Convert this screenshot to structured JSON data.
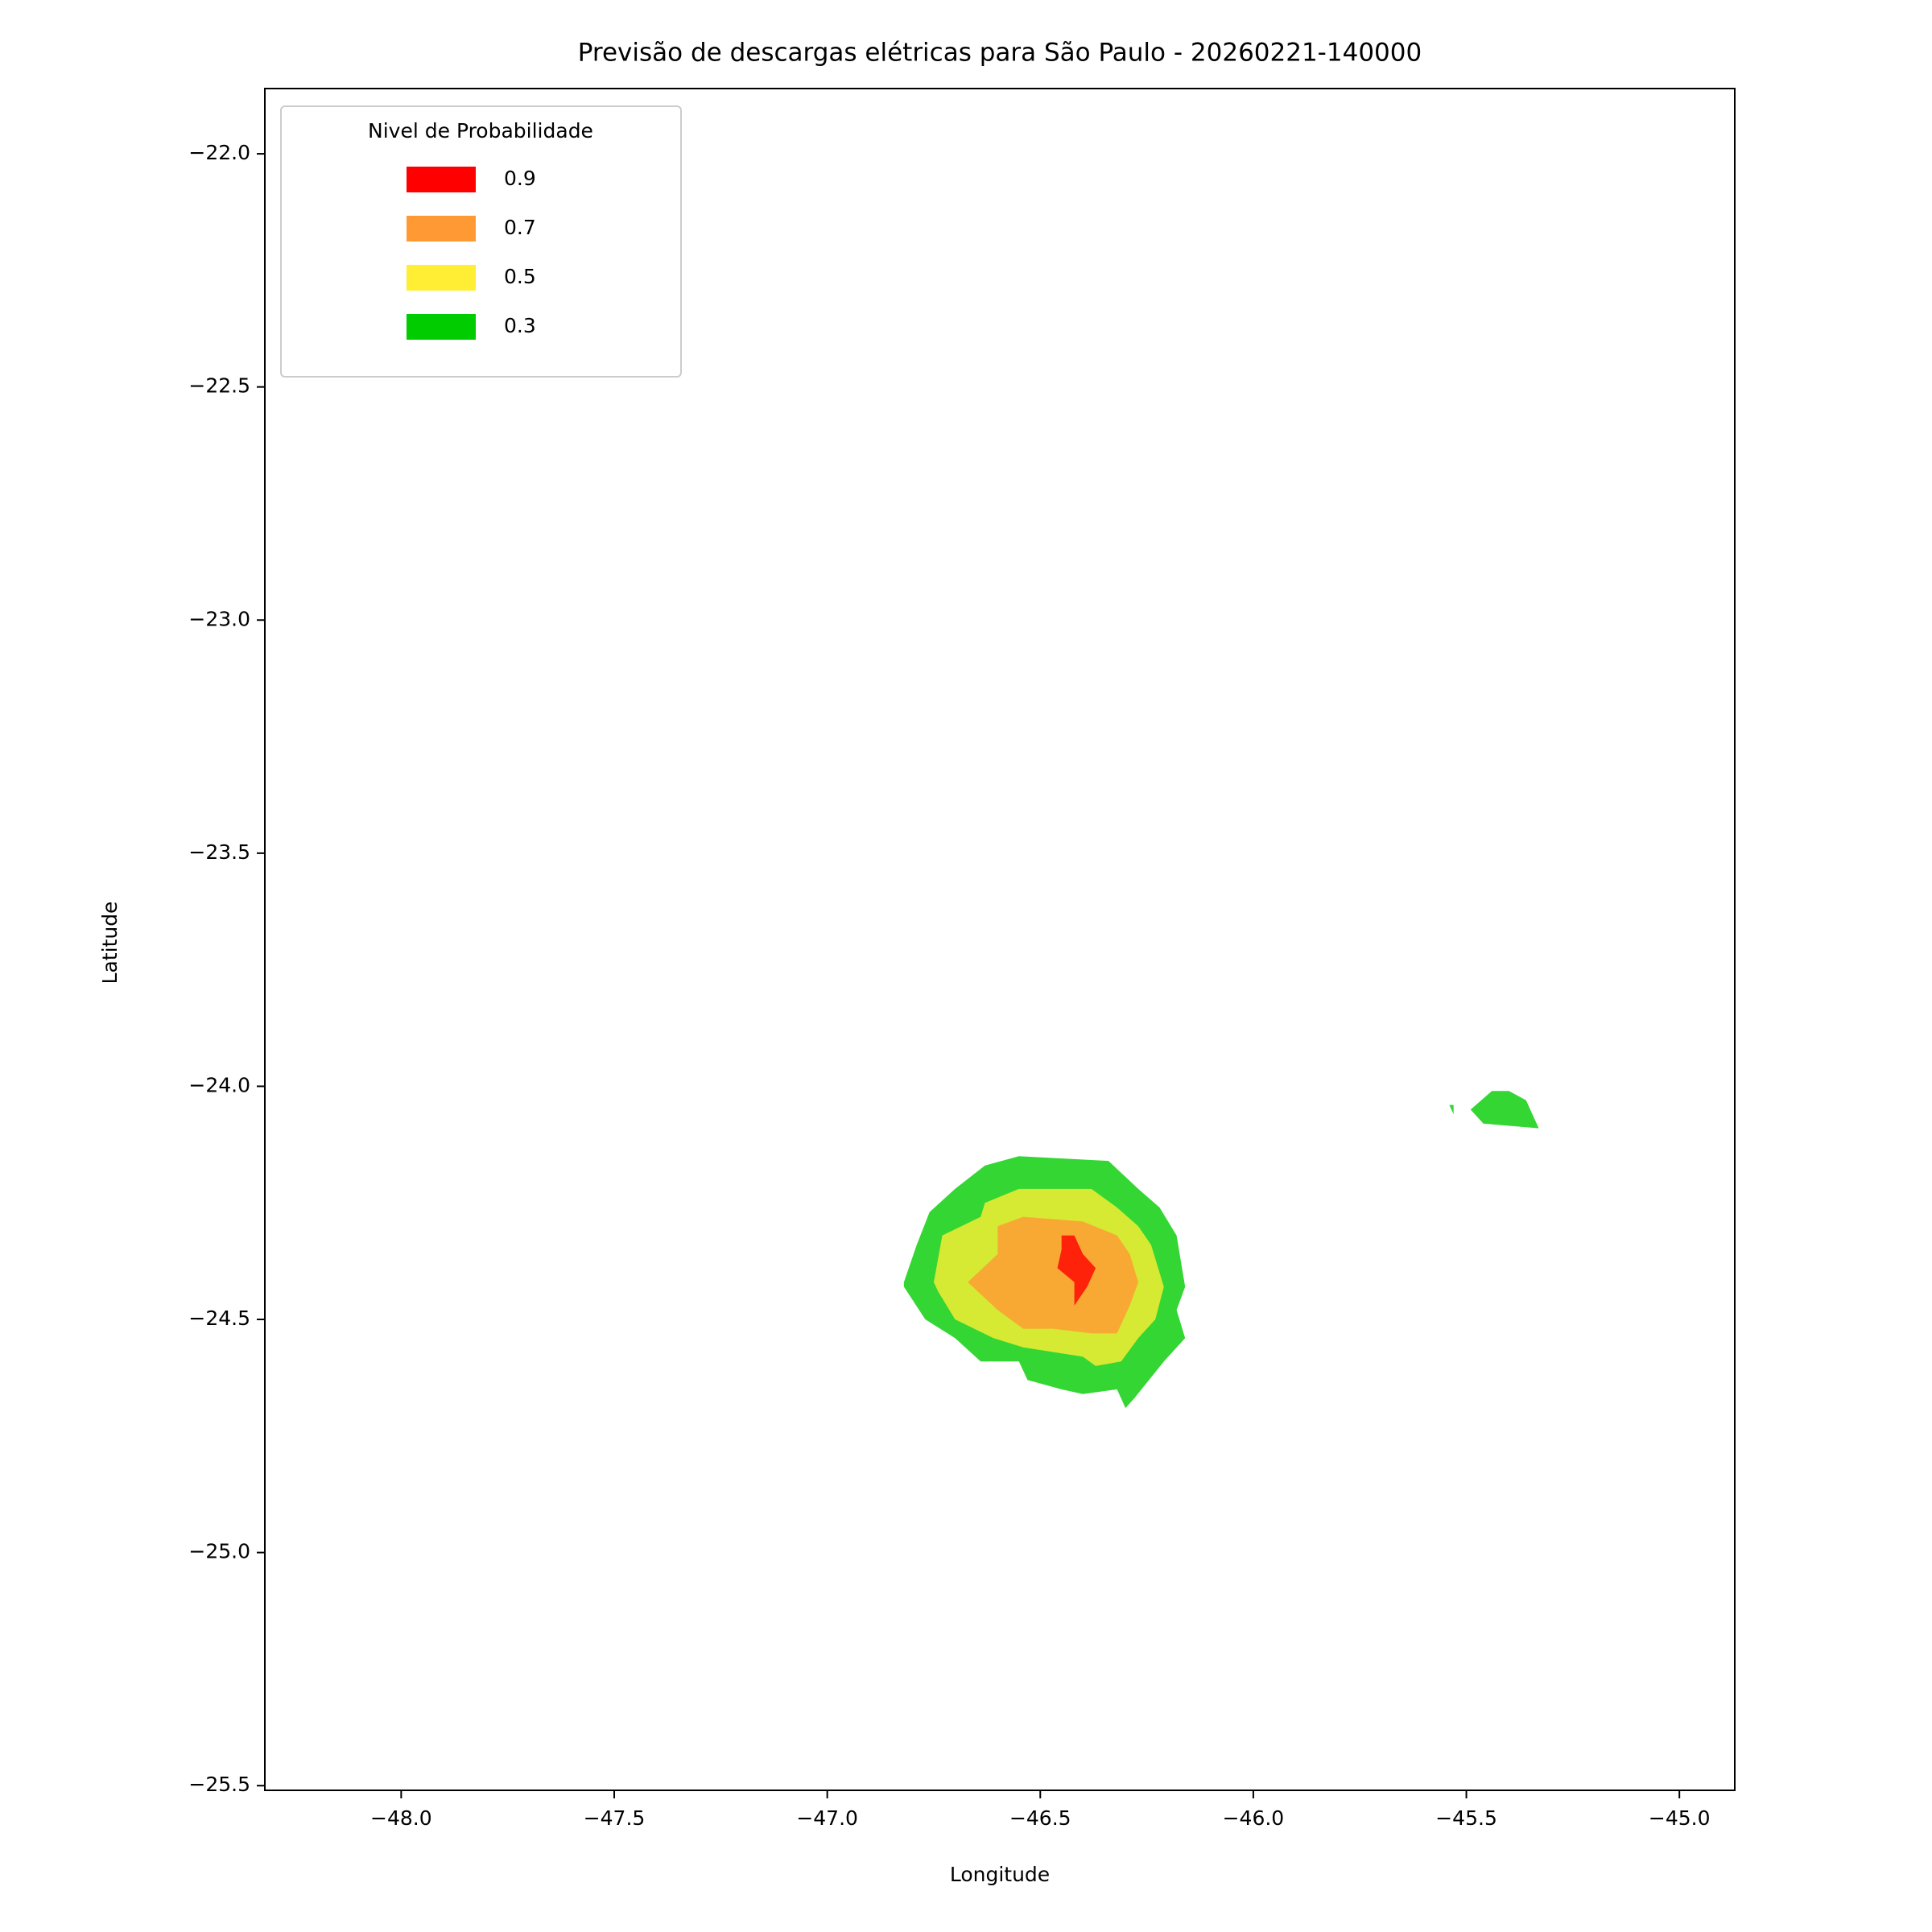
{
  "chart_data": {
    "type": "contour",
    "title": "Previsão de descargas elétricas para São Paulo - 20260221-140000",
    "x_label": "Longitude",
    "y_label": "Latitude",
    "xlim": [
      -48.32,
      -44.87
    ],
    "ylim": [
      -25.51,
      -21.86
    ],
    "xticks": [
      {
        "value": -48,
        "label": "−48.0"
      },
      {
        "value": -47.5,
        "label": "−47.5"
      },
      {
        "value": -47,
        "label": "−47.0"
      },
      {
        "value": -46.5,
        "label": "−46.5"
      },
      {
        "value": -46,
        "label": "−46.0"
      },
      {
        "value": -45.5,
        "label": "−45.5"
      },
      {
        "value": -45,
        "label": "−45.0"
      }
    ],
    "yticks": [
      {
        "value": -22,
        "label": "−22.0"
      },
      {
        "value": -22.5,
        "label": "−22.5"
      },
      {
        "value": -23,
        "label": "−23.0"
      },
      {
        "value": -23.5,
        "label": "−23.5"
      },
      {
        "value": -24,
        "label": "−24.0"
      },
      {
        "value": -24.5,
        "label": "−24.5"
      },
      {
        "value": -25,
        "label": "−25.0"
      },
      {
        "value": -25.5,
        "label": "−25.5"
      }
    ],
    "legend_title": "Nivel de Probabilidade",
    "legend_loc": "upper left",
    "fill_opacity": 0.8,
    "series": [
      {
        "name": "0.3",
        "color": "#00cc00",
        "polygons": [
          {
            "lon": [
              -46.82,
              -46.79,
              -46.76,
              -46.7,
              -46.63,
              -46.55,
              -46.34,
              -46.27,
              -46.22,
              -46.18,
              -46.16,
              -46.18,
              -46.16,
              -46.21,
              -46.28,
              -46.3,
              -46.32,
              -46.4,
              -46.45,
              -46.53,
              -46.55,
              -46.64,
              -46.7,
              -46.77,
              -46.82
            ],
            "lat": [
              -24.42,
              -24.34,
              -24.27,
              -24.22,
              -24.17,
              -24.15,
              -24.16,
              -24.22,
              -24.26,
              -24.32,
              -24.43,
              -24.48,
              -24.54,
              -24.59,
              -24.67,
              -24.69,
              -24.65,
              -24.66,
              -24.65,
              -24.63,
              -24.59,
              -24.59,
              -24.54,
              -24.5,
              -24.43
            ]
          },
          {
            "lon": [
              -45.49,
              -45.44,
              -45.4,
              -45.36,
              -45.33,
              -45.46,
              -45.49
            ],
            "lat": [
              -24.05,
              -24.01,
              -24.01,
              -24.03,
              -24.09,
              -24.08,
              -24.05
            ]
          },
          {
            "lon": [
              -45.54,
              -45.53,
              -45.53
            ],
            "lat": [
              -24.04,
              -24.06,
              -24.04
            ]
          }
        ]
      },
      {
        "name": "0.5",
        "color": "#ffee33",
        "polygons": [
          {
            "lon": [
              -46.75,
              -46.73,
              -46.64,
              -46.63,
              -46.55,
              -46.38,
              -46.32,
              -46.27,
              -46.24,
              -46.21,
              -46.23,
              -46.27,
              -46.31,
              -46.37,
              -46.4,
              -46.54,
              -46.61,
              -46.7,
              -46.74
            ],
            "lat": [
              -24.42,
              -24.32,
              -24.28,
              -24.25,
              -24.22,
              -24.22,
              -24.26,
              -24.3,
              -24.34,
              -24.43,
              -24.5,
              -24.54,
              -24.59,
              -24.6,
              -24.58,
              -24.56,
              -24.54,
              -24.5,
              -24.44
            ]
          }
        ]
      },
      {
        "name": "0.7",
        "color": "#ff9933",
        "polygons": [
          {
            "lon": [
              -46.67,
              -46.6,
              -46.6,
              -46.54,
              -46.4,
              -46.32,
              -46.29,
              -46.27,
              -46.29,
              -46.32,
              -46.38,
              -46.47,
              -46.54,
              -46.6
            ],
            "lat": [
              -24.42,
              -24.36,
              -24.3,
              -24.28,
              -24.29,
              -24.32,
              -24.36,
              -24.42,
              -24.47,
              -24.53,
              -24.53,
              -24.52,
              -24.52,
              -24.48
            ]
          }
        ]
      },
      {
        "name": "0.9",
        "color": "#ff0000",
        "polygons": [
          {
            "lon": [
              -46.45,
              -46.42,
              -46.4,
              -46.37,
              -46.39,
              -46.42,
              -46.42,
              -46.46,
              -46.45
            ],
            "lat": [
              -24.32,
              -24.32,
              -24.36,
              -24.39,
              -24.43,
              -24.47,
              -24.42,
              -24.39,
              -24.35
            ]
          }
        ]
      }
    ]
  }
}
